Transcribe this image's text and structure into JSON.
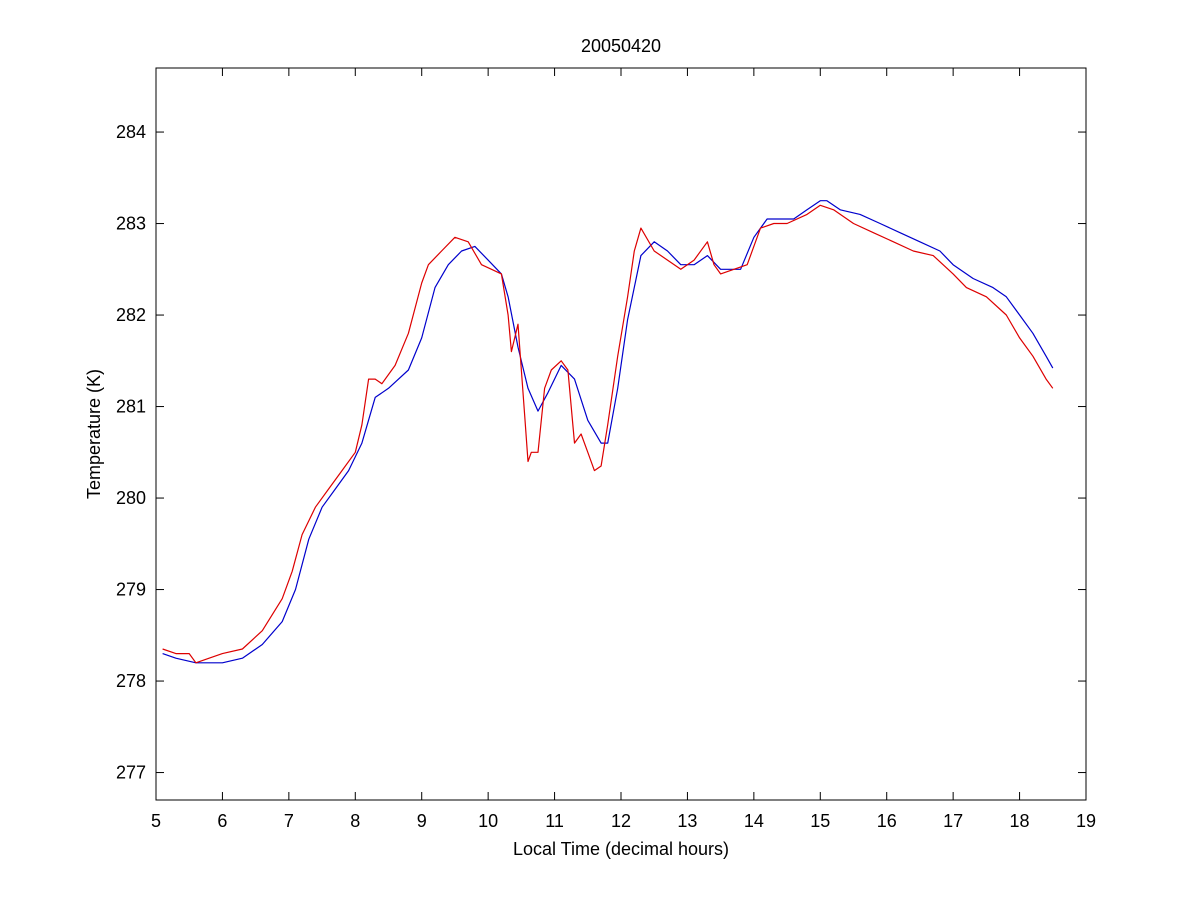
{
  "chart_data": {
    "type": "line",
    "title": "20050420",
    "xlabel": "Local Time (decimal hours)",
    "ylabel": "Temperature (K)",
    "xlim": [
      5,
      19
    ],
    "ylim": [
      276.7,
      284.7
    ],
    "xticks": [
      5,
      6,
      7,
      8,
      9,
      10,
      11,
      12,
      13,
      14,
      15,
      16,
      17,
      18,
      19
    ],
    "yticks": [
      277,
      278,
      279,
      280,
      281,
      282,
      283,
      284
    ],
    "grid": false,
    "legend": "none",
    "series": [
      {
        "color": "#0000cc",
        "x": [
          5.1,
          5.3,
          5.6,
          6.0,
          6.3,
          6.6,
          6.9,
          7.1,
          7.3,
          7.5,
          7.7,
          7.9,
          8.1,
          8.3,
          8.5,
          8.8,
          9.0,
          9.2,
          9.4,
          9.6,
          9.8,
          10.0,
          10.2,
          10.3,
          10.45,
          10.6,
          10.75,
          10.9,
          11.1,
          11.3,
          11.5,
          11.7,
          11.8,
          11.95,
          12.1,
          12.3,
          12.5,
          12.7,
          12.9,
          13.1,
          13.3,
          13.5,
          13.8,
          14.0,
          14.2,
          14.4,
          14.6,
          14.8,
          15.0,
          15.1,
          15.3,
          15.6,
          15.9,
          16.2,
          16.5,
          16.8,
          17.0,
          17.3,
          17.6,
          17.8,
          18.0,
          18.2,
          18.4,
          18.5
        ],
        "y": [
          278.3,
          278.25,
          278.2,
          278.2,
          278.25,
          278.4,
          278.65,
          279.0,
          279.55,
          279.9,
          280.1,
          280.3,
          280.6,
          281.1,
          281.2,
          281.4,
          281.75,
          282.3,
          282.55,
          282.7,
          282.75,
          282.6,
          282.45,
          282.2,
          281.65,
          281.2,
          280.95,
          281.15,
          281.45,
          281.3,
          280.85,
          280.6,
          280.6,
          281.2,
          281.95,
          282.65,
          282.8,
          282.7,
          282.55,
          282.55,
          282.65,
          282.5,
          282.5,
          282.85,
          283.05,
          283.05,
          283.05,
          283.15,
          283.25,
          283.25,
          283.15,
          283.1,
          283.0,
          282.9,
          282.8,
          282.7,
          282.55,
          282.4,
          282.3,
          282.2,
          282.0,
          281.8,
          281.55,
          281.42
        ]
      },
      {
        "color": "#dd0000",
        "x": [
          5.1,
          5.3,
          5.5,
          5.6,
          5.8,
          6.0,
          6.3,
          6.6,
          6.9,
          7.05,
          7.2,
          7.4,
          7.6,
          7.8,
          8.0,
          8.1,
          8.2,
          8.3,
          8.4,
          8.6,
          8.8,
          9.0,
          9.1,
          9.3,
          9.5,
          9.7,
          9.9,
          10.05,
          10.2,
          10.3,
          10.35,
          10.45,
          10.55,
          10.6,
          10.65,
          10.75,
          10.85,
          10.95,
          11.1,
          11.2,
          11.3,
          11.4,
          11.5,
          11.6,
          11.7,
          11.8,
          11.95,
          12.1,
          12.2,
          12.3,
          12.5,
          12.7,
          12.9,
          13.1,
          13.3,
          13.4,
          13.5,
          13.7,
          13.9,
          14.1,
          14.3,
          14.5,
          14.8,
          15.0,
          15.2,
          15.5,
          15.8,
          16.1,
          16.4,
          16.7,
          17.0,
          17.2,
          17.5,
          17.8,
          18.0,
          18.2,
          18.4,
          18.5
        ],
        "y": [
          278.35,
          278.3,
          278.3,
          278.2,
          278.25,
          278.3,
          278.35,
          278.55,
          278.9,
          279.2,
          279.6,
          279.9,
          280.1,
          280.3,
          280.5,
          280.8,
          281.3,
          281.3,
          281.25,
          281.45,
          281.8,
          282.35,
          282.55,
          282.7,
          282.85,
          282.8,
          282.55,
          282.5,
          282.45,
          282.0,
          281.6,
          281.9,
          280.9,
          280.4,
          280.5,
          280.5,
          281.2,
          281.4,
          281.5,
          281.4,
          280.6,
          280.7,
          280.5,
          280.3,
          280.35,
          280.8,
          281.55,
          282.2,
          282.7,
          282.95,
          282.7,
          282.6,
          282.5,
          282.6,
          282.8,
          282.55,
          282.45,
          282.5,
          282.55,
          282.95,
          283.0,
          283.0,
          283.1,
          283.2,
          283.15,
          283.0,
          282.9,
          282.8,
          282.7,
          282.65,
          282.45,
          282.3,
          282.2,
          282.0,
          281.75,
          281.55,
          281.3,
          281.2
        ]
      }
    ]
  }
}
